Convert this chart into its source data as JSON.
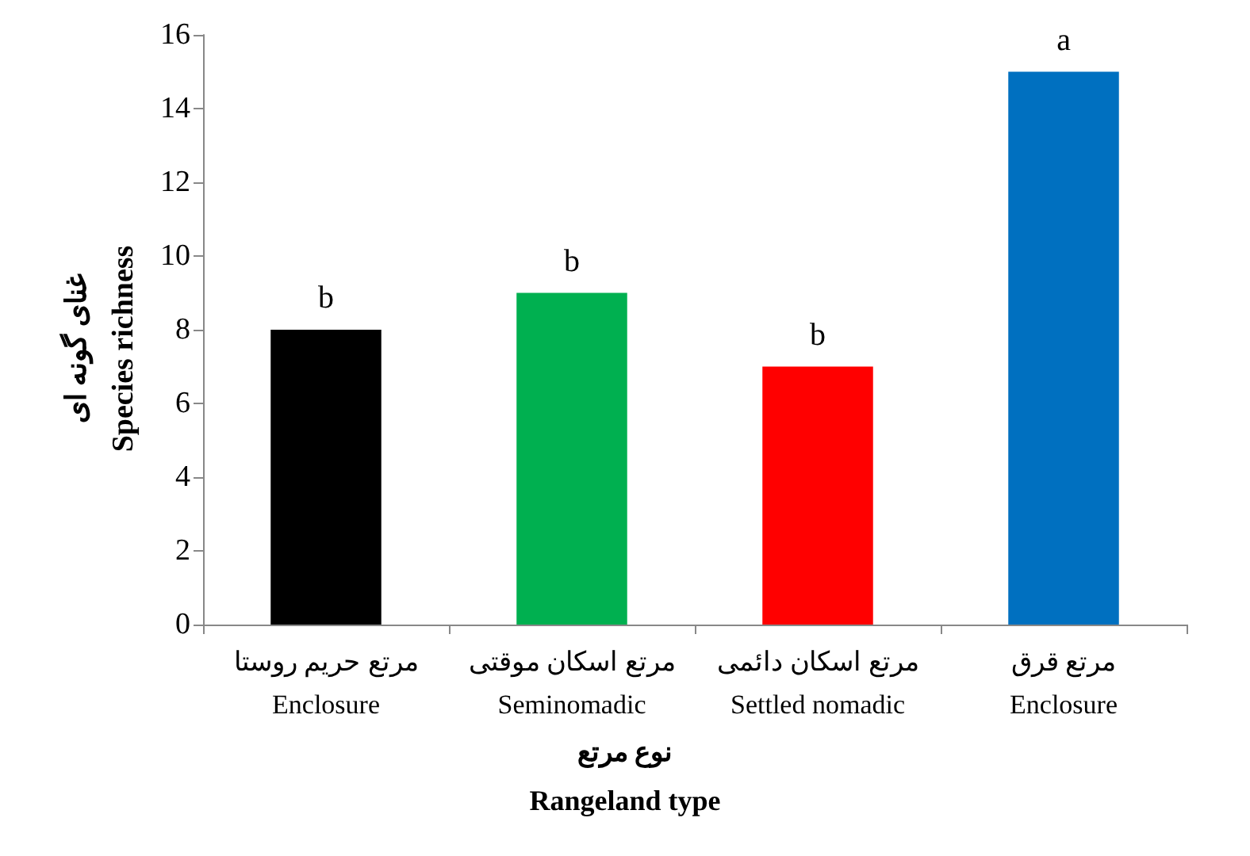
{
  "chart_data": {
    "type": "bar",
    "categories": [
      "مرتع حریم روستا\nEnclosure",
      "مرتع اسکان موقتی\nSeminomadic",
      "مرتع اسکان دائمی\nSettled nomadic",
      "مرتع قرق\nEnclosure"
    ],
    "values": [
      8,
      9,
      7,
      15
    ],
    "colors": [
      "#000000",
      "#00b050",
      "#ff0000",
      "#0070c0"
    ],
    "ylim": [
      0,
      16
    ],
    "yticks": [
      0,
      2,
      4,
      6,
      8,
      10,
      12,
      14,
      16
    ],
    "xlabel": "نوع مرتع\nRangeland type",
    "ylabel": "غنای گونه ای\nSpecies richness",
    "annotations": [
      {
        "text": "b",
        "x": "مرتع حریم روستا\nEnclosure",
        "y": 8
      },
      {
        "text": "b",
        "x": "مرتع اسکان موقتی\nSeminomadic",
        "y": 9
      },
      {
        "text": "b",
        "x": "مرتع اسکان دائمی\nSettled nomadic",
        "y": 7
      },
      {
        "text": "a",
        "x": "مرتع قرق\nEnclosure",
        "y": 15
      }
    ],
    "grid": false
  }
}
